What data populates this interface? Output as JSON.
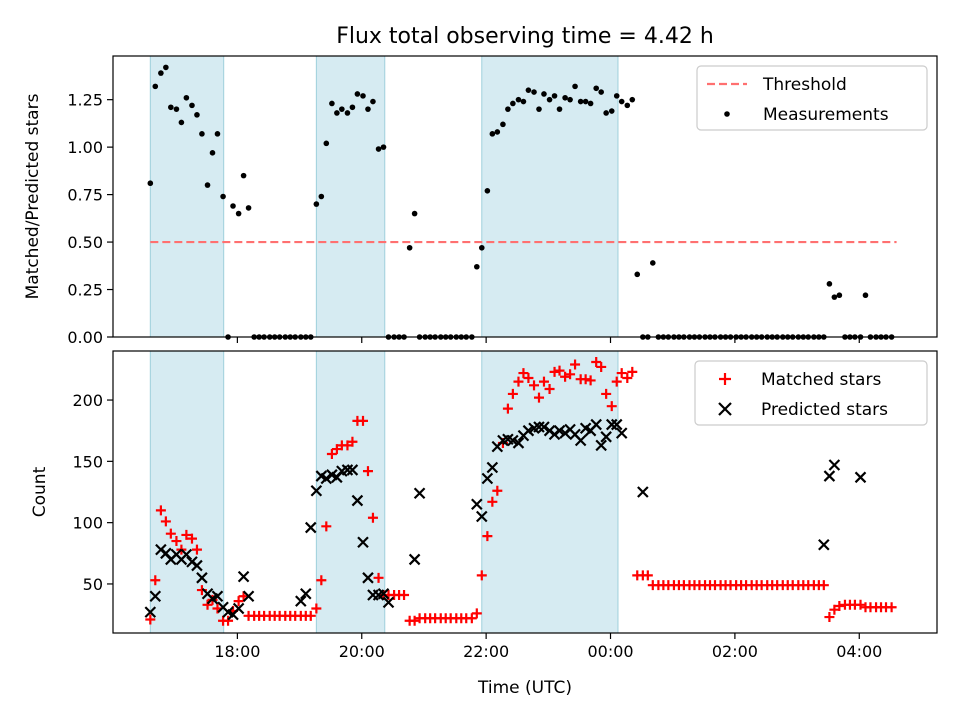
{
  "figure": {
    "title": "Flux total observing time = 4.42 h",
    "xlabel": "Time (UTC)",
    "xticks": [
      "18:00",
      "20:00",
      "22:00",
      "00:00",
      "02:00",
      "04:00"
    ]
  },
  "chart_data": [
    {
      "type": "scatter",
      "title": "Flux total observing time = 4.42 h",
      "ylabel": "Matched/Predicted stars",
      "xlabel": "",
      "x_unit": "hours since 00:00 UTC of first night (values > 24 are after midnight)",
      "xlim": [
        16.0,
        29.25
      ],
      "ylim": [
        0,
        1.48
      ],
      "yticks": [
        0.0,
        0.25,
        0.5,
        0.75,
        1.0,
        1.25
      ],
      "ytick_labels": [
        "0.00",
        "0.25",
        "0.50",
        "0.75",
        "1.00",
        "1.25"
      ],
      "grid": false,
      "legend_position": "top-right",
      "shaded_intervals": [
        [
          16.6,
          17.78
        ],
        [
          19.27,
          20.37
        ],
        [
          21.93,
          24.12
        ]
      ],
      "series": [
        {
          "name": "Threshold",
          "kind": "dashed-line",
          "color": "#ff7070",
          "x": [
            16.6,
            28.6
          ],
          "y": [
            0.5,
            0.5
          ]
        },
        {
          "name": "Measurements",
          "kind": "scatter",
          "color": "#000000",
          "x": [
            16.6,
            16.68,
            16.77,
            16.85,
            16.93,
            17.02,
            17.1,
            17.18,
            17.27,
            17.35,
            17.43,
            17.52,
            17.6,
            17.68,
            17.77,
            17.85,
            17.93,
            18.02,
            18.1,
            18.18,
            18.27,
            18.35,
            18.43,
            18.52,
            18.6,
            18.68,
            18.77,
            18.85,
            18.93,
            19.02,
            19.1,
            19.18,
            19.27,
            19.35,
            19.43,
            19.52,
            19.6,
            19.68,
            19.77,
            19.85,
            19.93,
            20.02,
            20.1,
            20.18,
            20.27,
            20.35,
            20.43,
            20.52,
            20.6,
            20.68,
            20.77,
            20.85,
            20.93,
            21.02,
            21.1,
            21.18,
            21.27,
            21.35,
            21.43,
            21.52,
            21.6,
            21.68,
            21.77,
            21.85,
            21.93,
            22.02,
            22.1,
            22.18,
            22.27,
            22.35,
            22.43,
            22.52,
            22.6,
            22.68,
            22.77,
            22.85,
            22.93,
            23.02,
            23.1,
            23.18,
            23.27,
            23.35,
            23.43,
            23.52,
            23.6,
            23.68,
            23.77,
            23.85,
            23.93,
            24.02,
            24.1,
            24.18,
            24.27,
            24.35,
            24.43,
            24.52,
            24.6,
            24.68,
            24.77,
            24.85,
            24.93,
            25.02,
            25.1,
            25.18,
            25.27,
            25.35,
            25.43,
            25.52,
            25.6,
            25.68,
            25.77,
            25.85,
            25.93,
            26.02,
            26.1,
            26.18,
            26.27,
            26.35,
            26.43,
            26.52,
            26.6,
            26.68,
            26.77,
            26.85,
            26.93,
            27.02,
            27.1,
            27.18,
            27.27,
            27.35,
            27.43,
            27.52,
            27.6,
            27.68,
            27.77,
            27.85,
            27.93,
            28.02,
            28.1,
            28.18,
            28.27,
            28.35,
            28.43,
            28.52
          ],
          "y": [
            0.81,
            1.32,
            1.39,
            1.42,
            1.21,
            1.2,
            1.13,
            1.26,
            1.22,
            1.17,
            1.07,
            0.8,
            0.97,
            1.07,
            0.74,
            0,
            0.69,
            0.65,
            0.85,
            0.68,
            0,
            0,
            0,
            0,
            0,
            0,
            0,
            0,
            0,
            0,
            0,
            0,
            0.7,
            0.74,
            1.02,
            1.23,
            1.18,
            1.2,
            1.18,
            1.21,
            1.28,
            1.27,
            1.2,
            1.24,
            0.99,
            1.0,
            0,
            0,
            0,
            0,
            0.47,
            0.65,
            0,
            0,
            0,
            0,
            0,
            0,
            0,
            0,
            0,
            0,
            0,
            0.37,
            0.47,
            0.77,
            1.07,
            1.08,
            1.12,
            1.2,
            1.23,
            1.25,
            1.24,
            1.3,
            1.29,
            1.2,
            1.28,
            1.25,
            1.27,
            1.2,
            1.26,
            1.25,
            1.32,
            1.24,
            1.24,
            1.23,
            1.31,
            1.29,
            1.18,
            1.19,
            1.27,
            1.24,
            1.22,
            1.25,
            0.33,
            0,
            0,
            0.39,
            0,
            0,
            0,
            0,
            0,
            0,
            0,
            0,
            0,
            0,
            0,
            0,
            0,
            0,
            0,
            0,
            0,
            0,
            0,
            0,
            0,
            0,
            0,
            0,
            0,
            0,
            0,
            0,
            0,
            0,
            0,
            0,
            0,
            0.28,
            0.21,
            0.22,
            0,
            0,
            0,
            0,
            0.22,
            0,
            0,
            0,
            0,
            0
          ]
        }
      ]
    },
    {
      "type": "scatter",
      "ylabel": "Count",
      "xlabel": "Time (UTC)",
      "x_unit": "hours since 00:00 UTC of first night (values > 24 are after midnight)",
      "xlim": [
        16.0,
        29.25
      ],
      "ylim": [
        10,
        240
      ],
      "yticks": [
        50,
        100,
        150,
        200
      ],
      "ytick_labels": [
        "50",
        "100",
        "150",
        "200"
      ],
      "xticks": [
        18,
        20,
        22,
        24,
        26,
        28
      ],
      "xtick_labels": [
        "18:00",
        "20:00",
        "22:00",
        "00:00",
        "02:00",
        "04:00"
      ],
      "grid": false,
      "legend_position": "top-right",
      "shaded_intervals": [
        [
          16.6,
          17.78
        ],
        [
          19.27,
          20.37
        ],
        [
          21.93,
          24.12
        ]
      ],
      "series": [
        {
          "name": "Matched stars",
          "marker": "plus",
          "color": "#ff0000",
          "x": [
            16.6,
            16.68,
            16.77,
            16.85,
            16.93,
            17.02,
            17.1,
            17.18,
            17.27,
            17.35,
            17.43,
            17.52,
            17.6,
            17.68,
            17.77,
            17.85,
            17.93,
            18.02,
            18.1,
            18.18,
            18.27,
            18.35,
            18.43,
            18.52,
            18.6,
            18.68,
            18.77,
            18.85,
            18.93,
            19.02,
            19.1,
            19.18,
            19.27,
            19.35,
            19.43,
            19.52,
            19.6,
            19.68,
            19.77,
            19.85,
            19.93,
            20.02,
            20.1,
            20.18,
            20.27,
            20.35,
            20.43,
            20.52,
            20.6,
            20.68,
            20.77,
            20.85,
            20.93,
            21.02,
            21.1,
            21.18,
            21.27,
            21.35,
            21.43,
            21.52,
            21.6,
            21.68,
            21.77,
            21.85,
            21.93,
            22.02,
            22.1,
            22.18,
            22.27,
            22.35,
            22.43,
            22.52,
            22.6,
            22.68,
            22.77,
            22.85,
            22.93,
            23.02,
            23.1,
            23.18,
            23.27,
            23.35,
            23.43,
            23.52,
            23.6,
            23.68,
            23.77,
            23.85,
            23.93,
            24.02,
            24.1,
            24.18,
            24.27,
            24.35,
            24.43,
            24.52,
            24.6,
            24.68,
            24.77,
            24.85,
            24.93,
            25.02,
            25.1,
            25.18,
            25.27,
            25.35,
            25.43,
            25.52,
            25.6,
            25.68,
            25.77,
            25.85,
            25.93,
            26.02,
            26.1,
            26.18,
            26.27,
            26.35,
            26.43,
            26.52,
            26.6,
            26.68,
            26.77,
            26.85,
            26.93,
            27.02,
            27.1,
            27.18,
            27.27,
            27.35,
            27.43,
            27.52,
            27.6,
            27.68,
            27.77,
            27.85,
            27.93,
            28.02,
            28.1,
            28.18,
            28.27,
            28.35,
            28.43,
            28.52
          ],
          "y": [
            21,
            53,
            110,
            101,
            91,
            85,
            78,
            90,
            87,
            78,
            45,
            33,
            37,
            30,
            20,
            20,
            28,
            36,
            40,
            24,
            24,
            24,
            24,
            24,
            24,
            24,
            24,
            24,
            24,
            24,
            24,
            24,
            30,
            53,
            97,
            156,
            160,
            163,
            163,
            166,
            183,
            183,
            142,
            104,
            55,
            41,
            41,
            41,
            41,
            41,
            20,
            20,
            22,
            22,
            22,
            22,
            22,
            22,
            22,
            22,
            22,
            22,
            22,
            26,
            57,
            89,
            117,
            126,
            165,
            193,
            205,
            215,
            222,
            218,
            212,
            202,
            215,
            209,
            223,
            224,
            219,
            221,
            229,
            217,
            217,
            216,
            231,
            227,
            205,
            195,
            215,
            222,
            218,
            223,
            57,
            57,
            57,
            49,
            49,
            49,
            49,
            49,
            49,
            49,
            49,
            49,
            49,
            49,
            49,
            49,
            49,
            49,
            49,
            49,
            49,
            49,
            49,
            49,
            49,
            49,
            49,
            49,
            49,
            49,
            49,
            49,
            49,
            49,
            49,
            49,
            49,
            23,
            29,
            32,
            33,
            33,
            33,
            33,
            31,
            31,
            31,
            31,
            31,
            31
          ]
        },
        {
          "name": "Predicted stars",
          "marker": "x",
          "color": "#000000",
          "x": [
            16.6,
            16.68,
            16.77,
            16.85,
            16.93,
            17.02,
            17.1,
            17.18,
            17.27,
            17.35,
            17.43,
            17.52,
            17.6,
            17.68,
            17.77,
            17.85,
            17.93,
            18.02,
            18.1,
            18.18,
            19.02,
            19.1,
            19.18,
            19.27,
            19.35,
            19.43,
            19.52,
            19.6,
            19.68,
            19.77,
            19.85,
            19.93,
            20.02,
            20.1,
            20.18,
            20.27,
            20.35,
            20.43,
            20.85,
            20.93,
            21.85,
            21.93,
            22.02,
            22.1,
            22.18,
            22.27,
            22.35,
            22.43,
            22.52,
            22.6,
            22.68,
            22.77,
            22.85,
            22.93,
            23.02,
            23.1,
            23.18,
            23.27,
            23.35,
            23.43,
            23.52,
            23.6,
            23.68,
            23.77,
            23.85,
            23.93,
            24.02,
            24.1,
            24.18,
            24.52,
            27.43,
            27.52,
            27.6,
            28.02
          ],
          "y": [
            27,
            40,
            78,
            75,
            70,
            74,
            70,
            74,
            68,
            65,
            55,
            42,
            38,
            40,
            31,
            27,
            25,
            30,
            56,
            40,
            36,
            42,
            96,
            126,
            138,
            136,
            139,
            137,
            142,
            143,
            143,
            118,
            84,
            55,
            41,
            41,
            42,
            35,
            70,
            124,
            115,
            105,
            136,
            145,
            162,
            167,
            168,
            167,
            165,
            171,
            175,
            177,
            178,
            178,
            175,
            172,
            175,
            173,
            176,
            172,
            167,
            177,
            175,
            180,
            163,
            170,
            180,
            180,
            173,
            125,
            82,
            138,
            147,
            137
          ]
        }
      ]
    }
  ]
}
